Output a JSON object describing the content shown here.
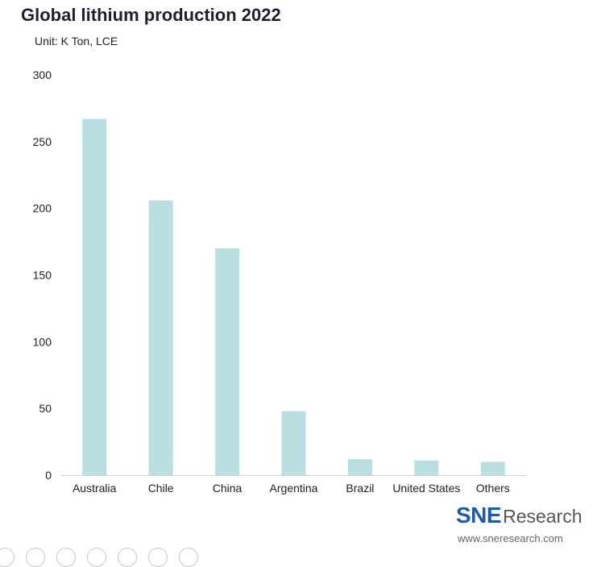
{
  "chart_data": {
    "type": "bar",
    "title": "Global lithium production 2022",
    "subtitle": "Unit: K Ton, LCE",
    "categories": [
      "Australia",
      "Chile",
      "China",
      "Argentina",
      "Brazil",
      "United States",
      "Others"
    ],
    "values": [
      267,
      206,
      170,
      48,
      12,
      11,
      10
    ],
    "xlabel": "",
    "ylabel": "",
    "ylim": [
      0,
      300
    ],
    "yticks": [
      0,
      50,
      100,
      150,
      200,
      250,
      300
    ],
    "grid": false,
    "legend": "none",
    "bar_color": "#badfe2"
  },
  "brand": {
    "logo_sne": "SNE",
    "logo_research": "Research",
    "url": "www.sneresearch.com",
    "logo_color": "#1e5aa8"
  },
  "footer_icons": [
    "toolbar-icon",
    "toolbar-icon",
    "toolbar-icon",
    "toolbar-icon",
    "toolbar-icon",
    "toolbar-icon",
    "toolbar-icon"
  ]
}
